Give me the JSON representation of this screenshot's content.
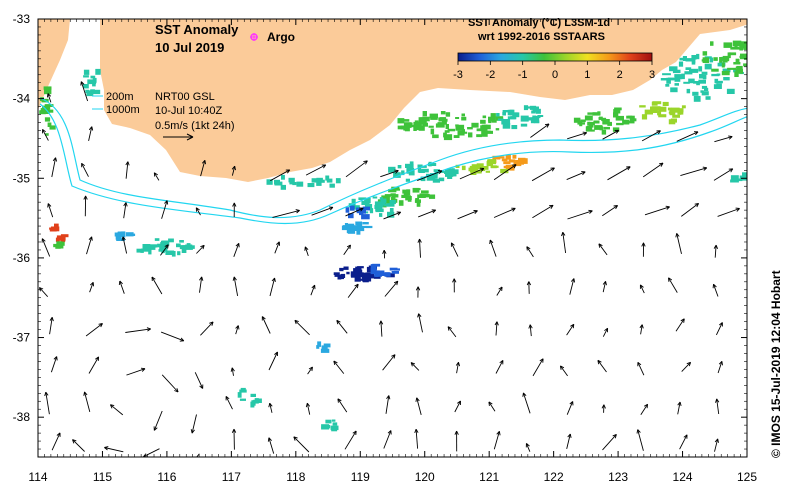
{
  "map": {
    "title_line1": "SST Anomaly",
    "title_line2": "10 Jul 2019",
    "argo_label": "Argo",
    "depth_label_200": "200m",
    "depth_label_1000": "1000m",
    "info_line1": "NRT00 GSL",
    "info_line2": "10-Jul 10:40Z",
    "info_line3": "0.5m/s (1kt 24h)",
    "credit": "© IMOS 15-Jul-2019 12:04 Hobart",
    "lon_range": [
      114,
      125
    ],
    "lat_range": [
      -38.5,
      -33
    ]
  },
  "colorbar": {
    "title_line1": "SST Anomaly (°C) L3SM-1d",
    "title_line2": "wrt 1992-2016 SSTAARS",
    "ticks": [
      "-3",
      "-2",
      "-1",
      "0",
      "1",
      "2",
      "3"
    ],
    "range": [
      -3,
      3
    ],
    "colors": [
      "#0a1e8c",
      "#1f5fd8",
      "#2aa8e0",
      "#26c7a8",
      "#3ec23a",
      "#9bd52a",
      "#f0e020",
      "#f59a1a",
      "#e0401a",
      "#a01010"
    ]
  },
  "axes": {
    "x_ticks": [
      "114",
      "115",
      "116",
      "117",
      "118",
      "119",
      "120",
      "121",
      "122",
      "123",
      "124",
      "125"
    ],
    "y_ticks": [
      "-33",
      "-34",
      "-35",
      "-36",
      "-37",
      "-38"
    ]
  },
  "colors": {
    "land": "#fbcb99",
    "ocean": "#ffffff",
    "contour": "#22d6f0",
    "argo": "#ff33ff",
    "arrow": "#000000"
  }
}
